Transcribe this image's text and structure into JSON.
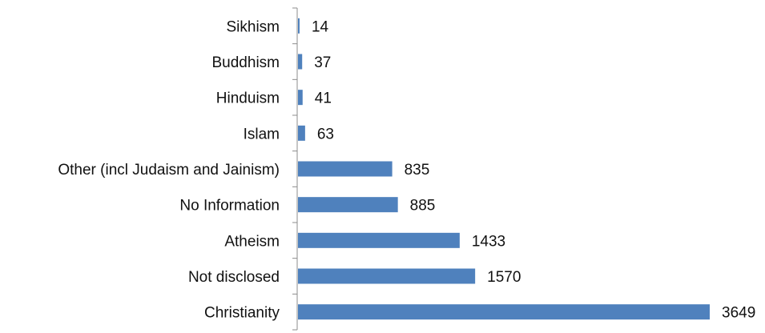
{
  "chart_data": {
    "type": "bar",
    "orientation": "horizontal",
    "title": "",
    "xlabel": "",
    "ylabel": "",
    "categories": [
      "Sikhism",
      "Buddhism",
      "Hinduism",
      "Islam",
      "Other (incl Judaism and Jainism)",
      "No Information",
      "Atheism",
      "Not disclosed",
      "Christianity"
    ],
    "values": [
      14,
      37,
      41,
      63,
      835,
      885,
      1433,
      1570,
      3649
    ],
    "value_labels": [
      "14",
      "37",
      "41",
      "63",
      "835",
      "885",
      "1433",
      "1570",
      "3649"
    ],
    "xlim": [
      0,
      3649
    ],
    "grid": false,
    "legend": "none",
    "bar_color": "#4f81bd"
  }
}
